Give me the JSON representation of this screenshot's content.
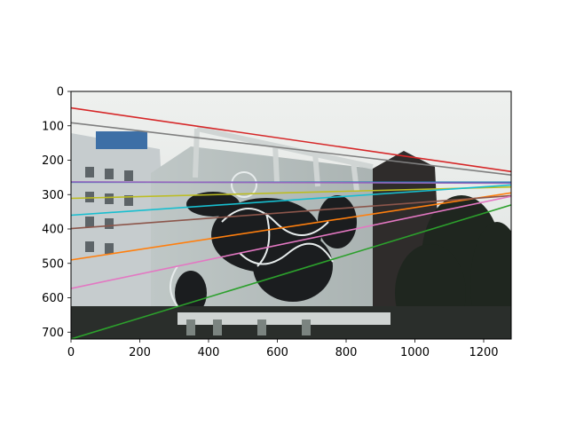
{
  "chart_data": {
    "type": "line",
    "title": "",
    "xlabel": "",
    "ylabel": "",
    "xlim": [
      0,
      1280
    ],
    "ylim": [
      720,
      0
    ],
    "y_inverted": true,
    "grid": false,
    "legend": "none",
    "background": "photograph of a building wall with a large black-and-white graffiti mural, trees at right",
    "x_ticks": [
      "0",
      "200",
      "400",
      "600",
      "800",
      "1000",
      "1200"
    ],
    "x_tick_values": [
      0,
      200,
      400,
      600,
      800,
      1000,
      1200
    ],
    "y_ticks": [
      "0",
      "100",
      "200",
      "300",
      "400",
      "500",
      "600",
      "700"
    ],
    "y_tick_values": [
      0,
      100,
      200,
      300,
      400,
      500,
      600,
      700
    ],
    "series": [
      {
        "color": "#1f77b4",
        "x": [
          0,
          1280
        ],
        "y": [
          264,
          264
        ]
      },
      {
        "color": "#ff7f0e",
        "x": [
          0,
          1280
        ],
        "y": [
          490,
          295
        ]
      },
      {
        "color": "#2ca02c",
        "x": [
          0,
          1280
        ],
        "y": [
          720,
          330
        ]
      },
      {
        "color": "#d62728",
        "x": [
          0,
          1280
        ],
        "y": [
          48,
          233
        ]
      },
      {
        "color": "#9467bd",
        "x": [
          0,
          1280
        ],
        "y": [
          263,
          267
        ]
      },
      {
        "color": "#8c564b",
        "x": [
          0,
          1280
        ],
        "y": [
          399,
          303
        ]
      },
      {
        "color": "#e377c2",
        "x": [
          0,
          1280
        ],
        "y": [
          573,
          305
        ]
      },
      {
        "color": "#7f7f7f",
        "x": [
          0,
          1280
        ],
        "y": [
          91,
          243
        ]
      },
      {
        "color": "#bcbd22",
        "x": [
          0,
          1280
        ],
        "y": [
          311,
          278
        ]
      },
      {
        "color": "#17becf",
        "x": [
          0,
          1280
        ],
        "y": [
          360,
          272
        ]
      }
    ]
  }
}
